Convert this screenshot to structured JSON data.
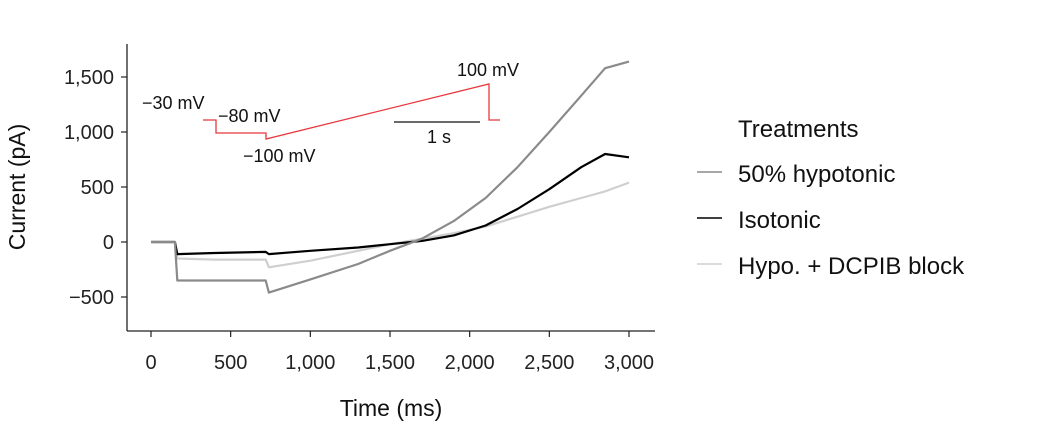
{
  "chart_data": {
    "type": "line",
    "title": "",
    "xlabel": "Time (ms)",
    "ylabel": "Current (pA)",
    "xlim": [
      -150,
      3150
    ],
    "ylim": [
      -800,
      1800
    ],
    "xticks": [
      0,
      500,
      1000,
      1500,
      2000,
      2500,
      3000
    ],
    "xtick_labels": [
      "0",
      "500",
      "1,000",
      "1,500",
      "2,000",
      "2,500",
      "3,000"
    ],
    "yticks": [
      -500,
      0,
      500,
      1000,
      1500
    ],
    "ytick_labels": [
      "−500",
      "0",
      "500",
      "1,000",
      "1,500"
    ],
    "grid": false,
    "legend": {
      "title": "Treatments",
      "placement": "right"
    },
    "series": [
      {
        "name": "50% hypotonic",
        "color": "#8a8a8a",
        "points": [
          [
            0,
            0
          ],
          [
            150,
            0
          ],
          [
            165,
            -350
          ],
          [
            400,
            -350
          ],
          [
            720,
            -350
          ],
          [
            740,
            -460
          ],
          [
            1000,
            -340
          ],
          [
            1300,
            -200
          ],
          [
            1500,
            -80
          ],
          [
            1700,
            30
          ],
          [
            1900,
            190
          ],
          [
            2100,
            400
          ],
          [
            2300,
            680
          ],
          [
            2500,
            1000
          ],
          [
            2700,
            1330
          ],
          [
            2850,
            1580
          ],
          [
            3000,
            1640
          ]
        ]
      },
      {
        "name": "Isotonic",
        "color": "#000000",
        "points": [
          [
            0,
            0
          ],
          [
            150,
            0
          ],
          [
            165,
            -110
          ],
          [
            400,
            -100
          ],
          [
            720,
            -90
          ],
          [
            740,
            -110
          ],
          [
            1000,
            -80
          ],
          [
            1300,
            -50
          ],
          [
            1500,
            -20
          ],
          [
            1700,
            10
          ],
          [
            1900,
            60
          ],
          [
            2100,
            150
          ],
          [
            2300,
            300
          ],
          [
            2500,
            480
          ],
          [
            2700,
            680
          ],
          [
            2850,
            800
          ],
          [
            3000,
            770
          ]
        ]
      },
      {
        "name": "Hypo. + DCPIB block",
        "color": "#cfcfcf",
        "points": [
          [
            0,
            0
          ],
          [
            150,
            0
          ],
          [
            165,
            -150
          ],
          [
            400,
            -160
          ],
          [
            720,
            -160
          ],
          [
            740,
            -230
          ],
          [
            1000,
            -170
          ],
          [
            1300,
            -80
          ],
          [
            1500,
            -20
          ],
          [
            1700,
            30
          ],
          [
            1900,
            80
          ],
          [
            2100,
            140
          ],
          [
            2300,
            230
          ],
          [
            2500,
            320
          ],
          [
            2700,
            400
          ],
          [
            2850,
            460
          ],
          [
            3000,
            540
          ]
        ]
      }
    ],
    "inset": {
      "color": "#e8383d",
      "labels": {
        "hold": "−30 mV",
        "step": "−80 mV",
        "ramp_start": "−100 mV",
        "ramp_end": "100 mV",
        "scale_bar": "1 s"
      }
    }
  }
}
